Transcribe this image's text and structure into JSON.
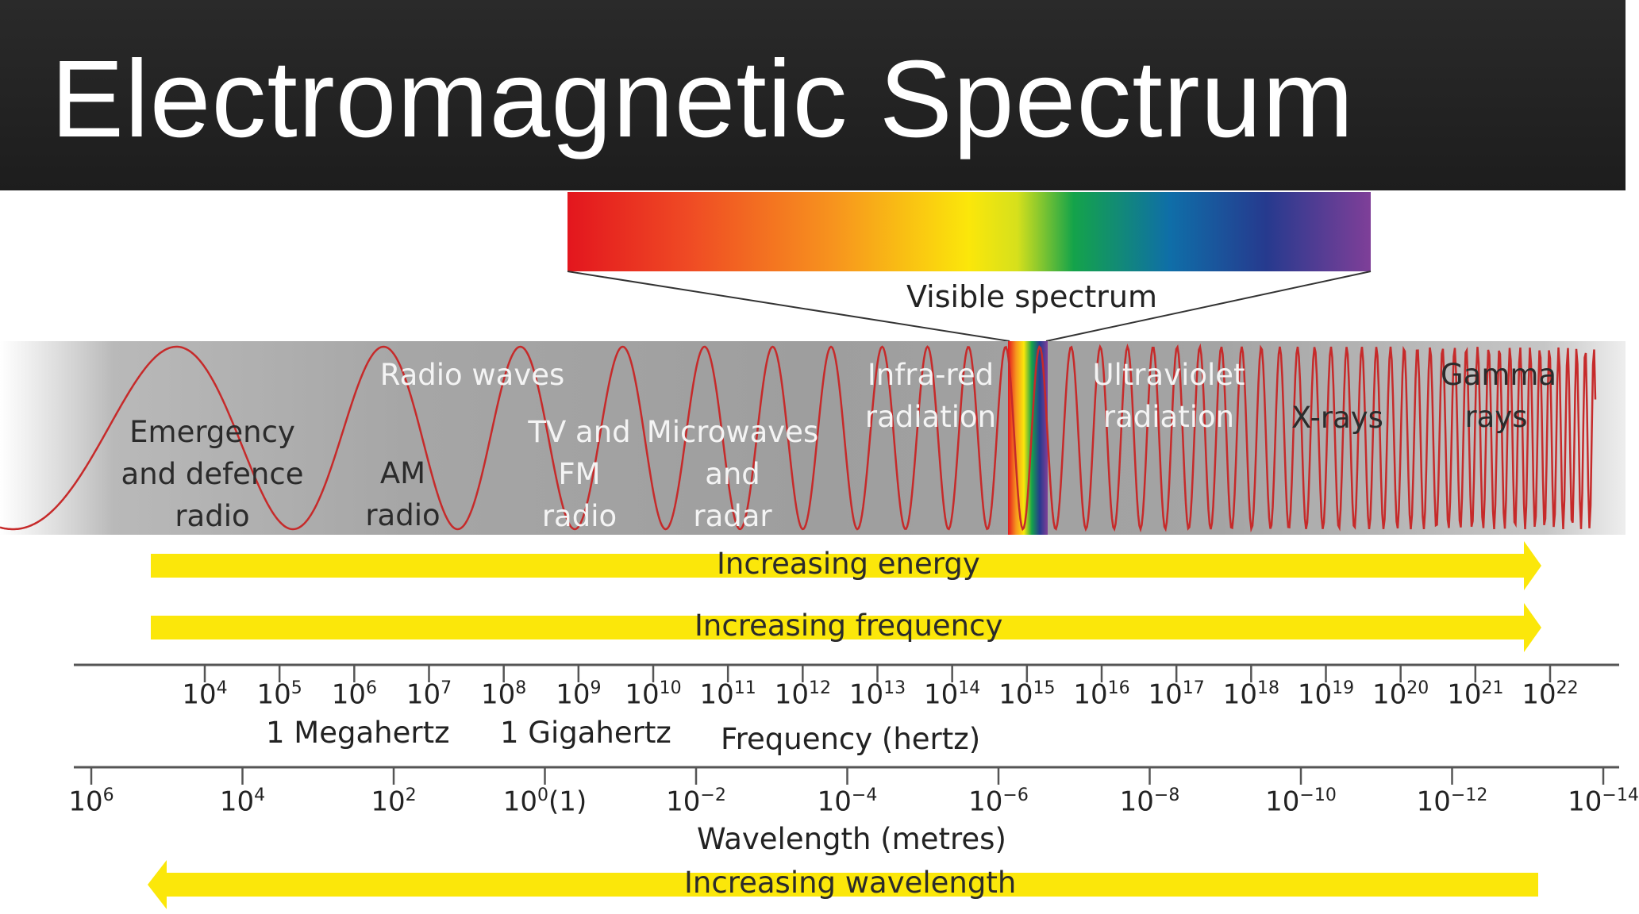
{
  "title": "Electromagnetic Spectrum",
  "visible_spectrum": {
    "label": "Visible spectrum",
    "colors": [
      "#e3161e",
      "#ef4a24",
      "#f7931e",
      "#fbe70a",
      "#14a34a",
      "#0f6ea8",
      "#263a8e",
      "#7f3f98"
    ]
  },
  "bands": [
    {
      "id": "emergency",
      "lines": [
        "Emergency",
        "and defence",
        "radio"
      ]
    },
    {
      "id": "radio-waves",
      "lines": [
        "Radio waves"
      ]
    },
    {
      "id": "am",
      "lines": [
        "AM",
        "radio"
      ]
    },
    {
      "id": "tv-fm",
      "lines": [
        "TV and",
        "FM",
        "radio"
      ]
    },
    {
      "id": "microwaves",
      "lines": [
        "Microwaves",
        "and",
        "radar"
      ]
    },
    {
      "id": "infrared",
      "lines": [
        "Infra-red",
        "radiation"
      ]
    },
    {
      "id": "ultraviolet",
      "lines": [
        "Ultraviolet",
        "radiation"
      ]
    },
    {
      "id": "xrays",
      "lines": [
        "X-rays"
      ]
    },
    {
      "id": "gamma",
      "lines": [
        "Gamma",
        "rays"
      ]
    }
  ],
  "arrows": {
    "energy": "Increasing energy",
    "frequency": "Increasing frequency",
    "wavelength": "Increasing wavelength"
  },
  "frequency_axis": {
    "label": "Frequency (hertz)",
    "ticks": [
      {
        "base": "10",
        "exp": "4"
      },
      {
        "base": "10",
        "exp": "5"
      },
      {
        "base": "10",
        "exp": "6"
      },
      {
        "base": "10",
        "exp": "7"
      },
      {
        "base": "10",
        "exp": "8"
      },
      {
        "base": "10",
        "exp": "9"
      },
      {
        "base": "10",
        "exp": "10"
      },
      {
        "base": "10",
        "exp": "11"
      },
      {
        "base": "10",
        "exp": "12"
      },
      {
        "base": "10",
        "exp": "13"
      },
      {
        "base": "10",
        "exp": "14"
      },
      {
        "base": "10",
        "exp": "15"
      },
      {
        "base": "10",
        "exp": "16"
      },
      {
        "base": "10",
        "exp": "17"
      },
      {
        "base": "10",
        "exp": "18"
      },
      {
        "base": "10",
        "exp": "19"
      },
      {
        "base": "10",
        "exp": "20"
      },
      {
        "base": "10",
        "exp": "21"
      },
      {
        "base": "10",
        "exp": "22"
      }
    ],
    "annotations": {
      "megahertz": "1 Megahertz",
      "gigahertz": "1 Gigahertz"
    }
  },
  "wavelength_axis": {
    "label": "Wavelength (metres)",
    "ticks": [
      {
        "base": "10",
        "exp": "6",
        "suffix": ""
      },
      {
        "base": "10",
        "exp": "4",
        "suffix": ""
      },
      {
        "base": "10",
        "exp": "2",
        "suffix": ""
      },
      {
        "base": "10",
        "exp": "0",
        "suffix": "(1)"
      },
      {
        "base": "10",
        "exp": "−2",
        "suffix": ""
      },
      {
        "base": "10",
        "exp": "−4",
        "suffix": ""
      },
      {
        "base": "10",
        "exp": "−6",
        "suffix": ""
      },
      {
        "base": "10",
        "exp": "−8",
        "suffix": ""
      },
      {
        "base": "10",
        "exp": "−10",
        "suffix": ""
      },
      {
        "base": "10",
        "exp": "−12",
        "suffix": ""
      },
      {
        "base": "10",
        "exp": "−14",
        "suffix": ""
      }
    ]
  },
  "colors": {
    "arrow_yellow": "#fbe70a",
    "wave_red": "#c62a2a",
    "band_grey": "#9c9c9c",
    "title_bg": "#222222",
    "title_text": "#ffffff"
  }
}
